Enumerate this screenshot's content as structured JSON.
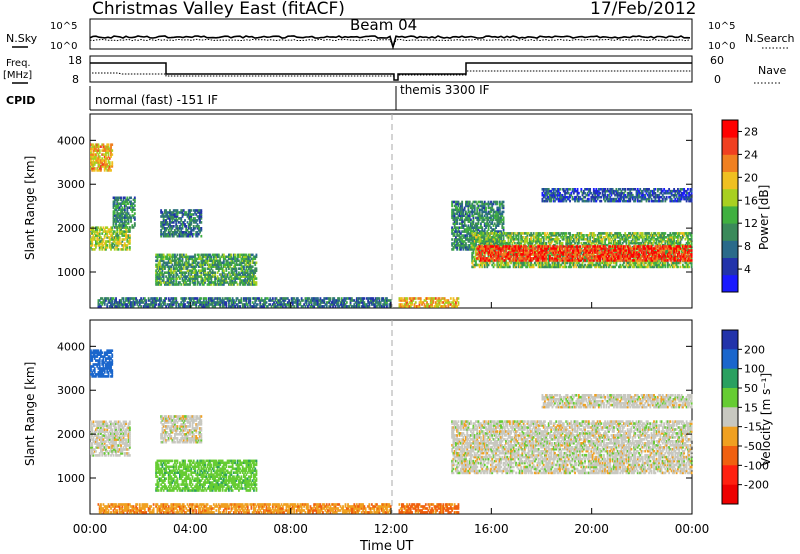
{
  "header": {
    "radar": "Christmas Valley East (fitACF)",
    "beam": "Beam 04",
    "date": "17/Feb/2012"
  },
  "strips": {
    "nsky_label": "N.Sky",
    "nsearch_label": "N.Search",
    "noise_ticks": [
      "10^5",
      "10^0"
    ],
    "freq_label": "Freq.",
    "freq_unit": "[MHz]",
    "freq_ticks": [
      "18",
      "8"
    ],
    "nave_label": "Nave",
    "nave_ticks": [
      "60",
      "0"
    ],
    "cpid_label": "CPID",
    "cpid_modes": [
      "normal (fast) -151 IF",
      "themis 3300 IF"
    ]
  },
  "axes": {
    "xlabel": "Time UT",
    "xticks": [
      "00:00",
      "04:00",
      "08:00",
      "12:00",
      "16:00",
      "20:00",
      "00:00"
    ],
    "ylabel": "Slant Range [km]",
    "yticks": [
      "1000",
      "2000",
      "3000",
      "4000"
    ]
  },
  "power_scale": {
    "label": "Power [dB]",
    "ticks": [
      "4",
      "8",
      "12",
      "16",
      "20",
      "24",
      "28"
    ],
    "colors": [
      "#1a1aff",
      "#2233aa",
      "#2a6a8a",
      "#3a8a5a",
      "#40b040",
      "#a8d020",
      "#f0c020",
      "#f08020",
      "#f04020",
      "#ff0000"
    ]
  },
  "velocity_scale": {
    "label": "Velocity [m s⁻¹]",
    "ticks": [
      "200",
      "100",
      "50",
      "15",
      "-15",
      "-50",
      "-100",
      "-200"
    ],
    "colors": [
      "#2233aa",
      "#1a66cc",
      "#2aa060",
      "#66cc33",
      "#c8c8c0",
      "#f0a020",
      "#f06010",
      "#ff2010",
      "#ee0000"
    ]
  },
  "chart_data": [
    {
      "type": "heatmap",
      "title": "Power",
      "x_unit": "hours UT",
      "y_unit": "km",
      "xlim": [
        0,
        24
      ],
      "ylim": [
        180,
        4600
      ],
      "clim": [
        0,
        30
      ],
      "regions": [
        {
          "t": [
            0.0,
            0.9
          ],
          "r": [
            3300,
            3900
          ],
          "p": 20
        },
        {
          "t": [
            0.0,
            1.6
          ],
          "r": [
            1500,
            2000
          ],
          "p": 16
        },
        {
          "t": [
            0.9,
            1.8
          ],
          "r": [
            2000,
            2700
          ],
          "p": 10
        },
        {
          "t": [
            2.8,
            4.4
          ],
          "r": [
            1800,
            2400
          ],
          "p": 8
        },
        {
          "t": [
            2.6,
            6.6
          ],
          "r": [
            700,
            1400
          ],
          "p": 12
        },
        {
          "t": [
            0.3,
            12.0
          ],
          "r": [
            200,
            400
          ],
          "p": 8
        },
        {
          "t": [
            12.3,
            14.7
          ],
          "r": [
            200,
            400
          ],
          "p": 20
        },
        {
          "t": [
            14.4,
            16.5
          ],
          "r": [
            1500,
            2600
          ],
          "p": 10
        },
        {
          "t": [
            15.2,
            24.0
          ],
          "r": [
            1100,
            1900
          ],
          "p": 14
        },
        {
          "t": [
            15.4,
            24.0
          ],
          "r": [
            1250,
            1600
          ],
          "p": 26
        },
        {
          "t": [
            18.0,
            24.0
          ],
          "r": [
            2600,
            2900
          ],
          "p": 6
        }
      ]
    },
    {
      "type": "heatmap",
      "title": "Velocity",
      "x_unit": "hours UT",
      "y_unit": "km",
      "xlim": [
        0,
        24
      ],
      "ylim": [
        180,
        4600
      ],
      "clim": [
        -250,
        250
      ],
      "regions": [
        {
          "t": [
            0.0,
            0.9
          ],
          "r": [
            3300,
            3900
          ],
          "v": 120
        },
        {
          "t": [
            0.0,
            1.6
          ],
          "r": [
            1500,
            2300
          ],
          "v": 0
        },
        {
          "t": [
            2.8,
            4.4
          ],
          "r": [
            1800,
            2400
          ],
          "v": 0
        },
        {
          "t": [
            2.6,
            6.6
          ],
          "r": [
            700,
            1400
          ],
          "v": 35
        },
        {
          "t": [
            0.3,
            12.0
          ],
          "r": [
            200,
            400
          ],
          "v": -40
        },
        {
          "t": [
            12.3,
            14.7
          ],
          "r": [
            200,
            400
          ],
          "v": -60
        },
        {
          "t": [
            14.4,
            24.0
          ],
          "r": [
            1100,
            2300
          ],
          "v": 0
        },
        {
          "t": [
            18.0,
            24.0
          ],
          "r": [
            2600,
            2900
          ],
          "v": 0
        }
      ]
    }
  ]
}
